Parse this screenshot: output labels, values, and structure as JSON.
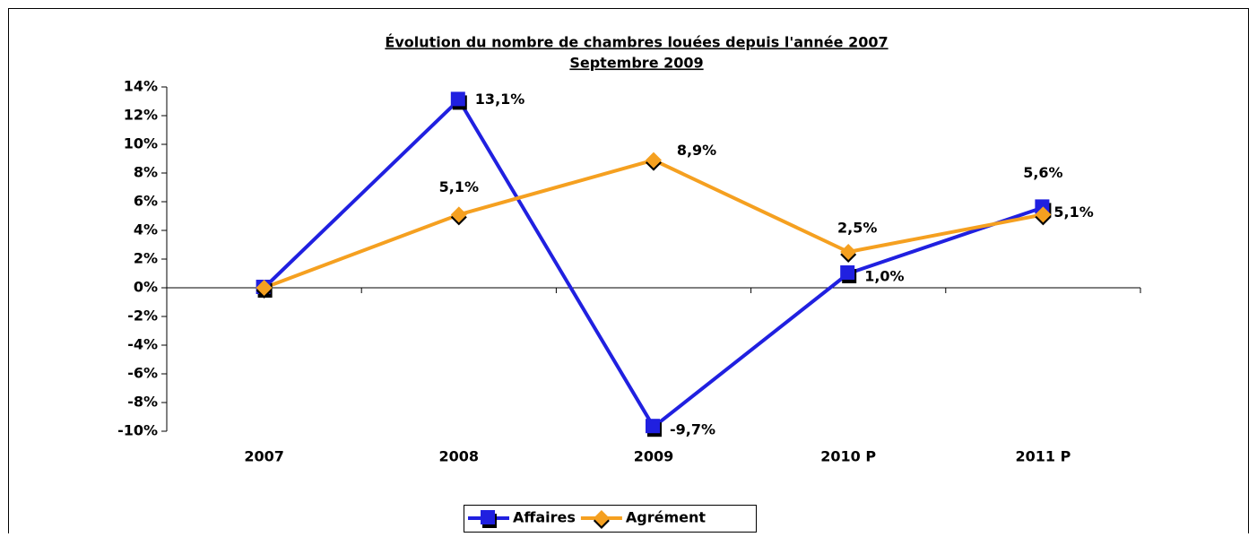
{
  "chart_data": {
    "type": "line",
    "title": "Évolution du nombre de chambres louées depuis l'année 2007",
    "subtitle": "Septembre 2009",
    "categories": [
      "2007",
      "2008",
      "2009",
      "2010 P",
      "2011 P"
    ],
    "series": [
      {
        "name": "Affaires",
        "color": "#2020e0",
        "marker": "square",
        "values": [
          0,
          13.1,
          -9.7,
          1.0,
          5.6
        ],
        "value_labels": [
          null,
          "13,1%",
          "-9,7%",
          "1,0%",
          "5,6%"
        ]
      },
      {
        "name": "Agrément",
        "color": "#f5a020",
        "marker": "diamond",
        "values": [
          0,
          5.1,
          8.9,
          2.5,
          5.1
        ],
        "value_labels": [
          null,
          "5,1%",
          "8,9%",
          "2,5%",
          "5,1%"
        ]
      }
    ],
    "ylim": [
      -10,
      14
    ],
    "yticks": [
      {
        "value": -10,
        "label": "-10%"
      },
      {
        "value": -8,
        "label": "-8%"
      },
      {
        "value": -6,
        "label": "-6%"
      },
      {
        "value": -4,
        "label": "-4%"
      },
      {
        "value": -2,
        "label": "-2%"
      },
      {
        "value": 0,
        "label": "0%"
      },
      {
        "value": 2,
        "label": "2%"
      },
      {
        "value": 4,
        "label": "4%"
      },
      {
        "value": 6,
        "label": "6%"
      },
      {
        "value": 8,
        "label": "8%"
      },
      {
        "value": 10,
        "label": "10%"
      },
      {
        "value": 12,
        "label": "12%"
      },
      {
        "value": 14,
        "label": "14%"
      }
    ],
    "grid": false,
    "legend": "bottom"
  }
}
